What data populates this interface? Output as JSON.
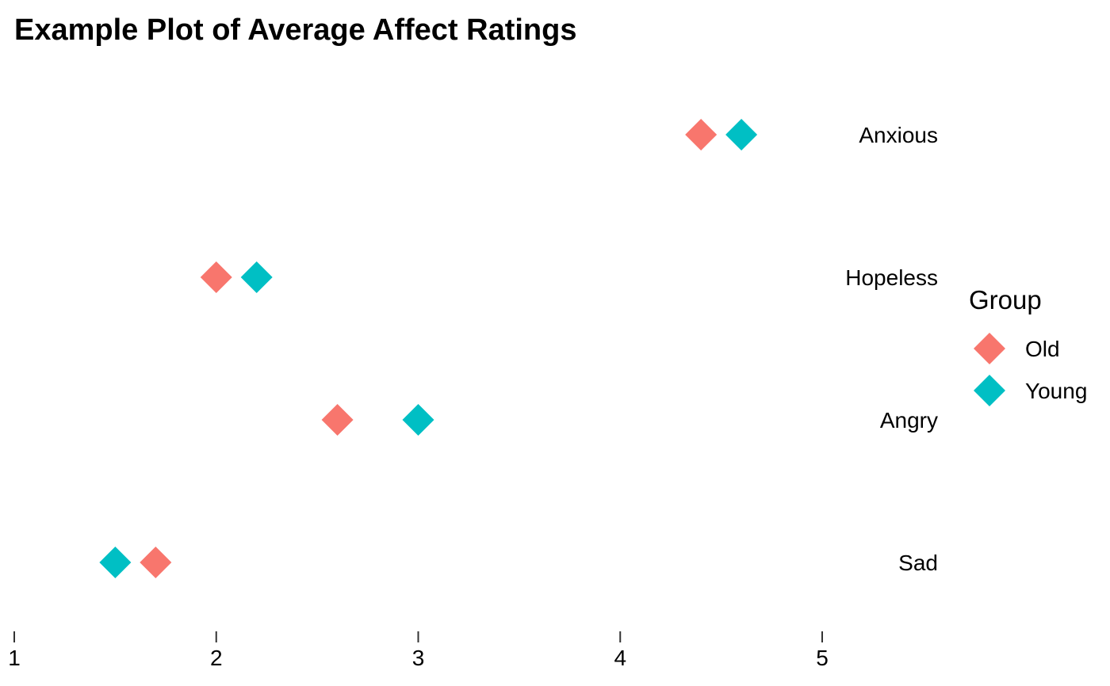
{
  "chart_data": {
    "type": "scatter",
    "title": "Example Plot of Average Affect Ratings",
    "categories": [
      "Anxious",
      "Hopeless",
      "Angry",
      "Sad"
    ],
    "series": [
      {
        "name": "Old",
        "color": "#F8766D",
        "marker": "diamond",
        "values": [
          4.4,
          2.0,
          2.6,
          1.7
        ]
      },
      {
        "name": "Young",
        "color": "#00BFC4",
        "marker": "diamond",
        "values": [
          4.6,
          2.2,
          3.0,
          1.5
        ]
      }
    ],
    "x_ticks": [
      1,
      2,
      3,
      4,
      5
    ],
    "xlim": [
      1,
      5
    ],
    "legend": {
      "title": "Group",
      "position": "right"
    },
    "grid": false
  }
}
